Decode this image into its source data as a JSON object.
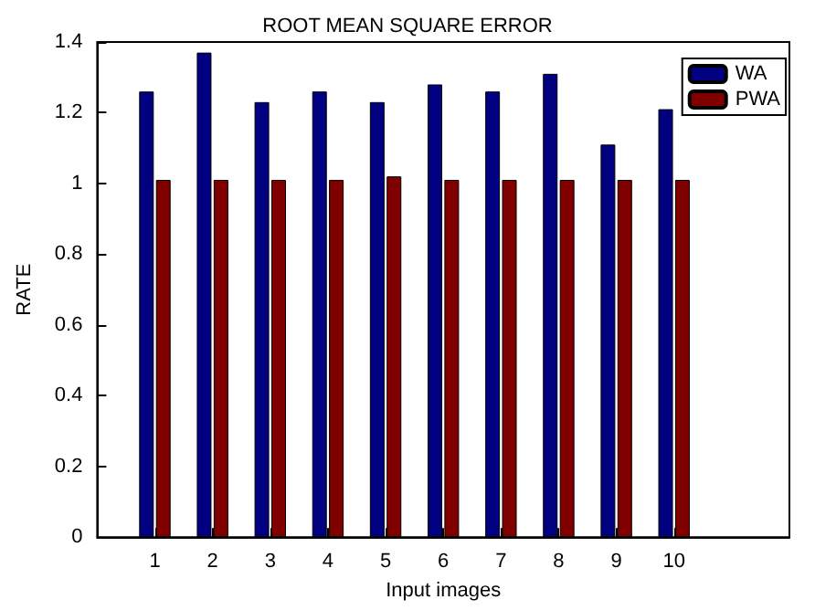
{
  "chart_data": {
    "type": "bar",
    "title": "ROOT MEAN SQUARE ERROR",
    "xlabel": "Input images",
    "ylabel": "RATE",
    "x": [
      1,
      2,
      3,
      4,
      5,
      6,
      7,
      8,
      9,
      10
    ],
    "xlim": [
      0,
      12
    ],
    "xticks": [
      1,
      2,
      3,
      4,
      5,
      6,
      7,
      8,
      9,
      10
    ],
    "ylim": [
      0,
      1.4
    ],
    "yticks": [
      0,
      0.2,
      0.4,
      0.6,
      0.8,
      1,
      1.2,
      1.4
    ],
    "series": [
      {
        "name": "WA",
        "color": "#000080",
        "values": [
          1.26,
          1.37,
          1.23,
          1.26,
          1.23,
          1.28,
          1.26,
          1.31,
          1.11,
          1.21
        ]
      },
      {
        "name": "PWA",
        "color": "#800000",
        "values": [
          1.01,
          1.01,
          1.01,
          1.01,
          1.02,
          1.01,
          1.01,
          1.01,
          1.01,
          1.01
        ]
      }
    ],
    "grid": false,
    "legend": "top right"
  }
}
